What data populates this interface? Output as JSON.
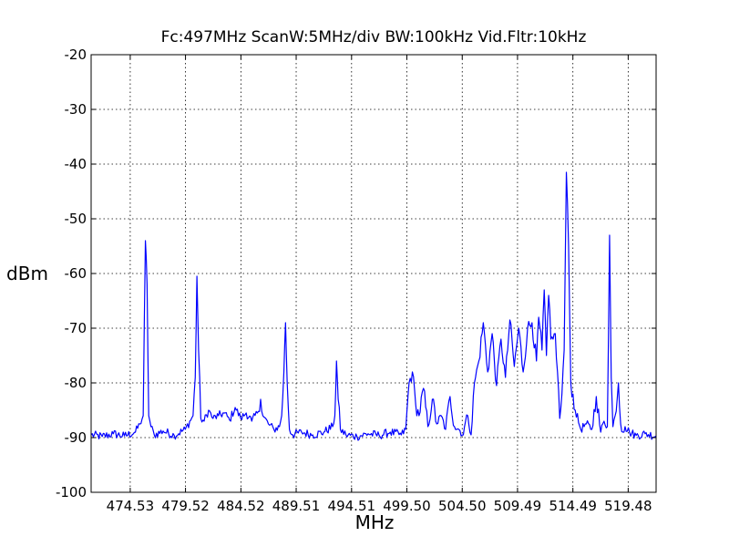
{
  "chart_data": {
    "type": "line",
    "title": "Fc:497MHz ScanW:5MHz/div BW:100kHz Vid.Fltr:10kHz",
    "xlabel": "MHz",
    "ylabel": "dBm",
    "xlim": [
      471.0,
      522.0
    ],
    "ylim": [
      -100,
      -20
    ],
    "grid": true,
    "x_ticks": [
      "474.53",
      "479.52",
      "484.52",
      "489.51",
      "494.51",
      "499.50",
      "504.50",
      "509.49",
      "514.49",
      "519.48"
    ],
    "x_tick_values": [
      474.53,
      479.52,
      484.52,
      489.51,
      494.51,
      499.5,
      504.5,
      509.49,
      514.49,
      519.48
    ],
    "y_ticks": [
      "-20",
      "-30",
      "-40",
      "-50",
      "-60",
      "-70",
      "-80",
      "-90",
      "-100"
    ],
    "y_tick_values": [
      -20,
      -30,
      -40,
      -50,
      -60,
      -70,
      -80,
      -90,
      -100
    ],
    "series": [
      {
        "color": "#0000ff",
        "x": [
          471.0,
          472.0,
          473.0,
          474.0,
          475.0,
          475.4,
          475.7,
          475.9,
          476.05,
          476.2,
          476.4,
          476.7,
          477.5,
          478.5,
          479.5,
          480.2,
          480.4,
          480.55,
          480.7,
          480.9,
          481.2,
          481.6,
          482.0,
          482.5,
          483.0,
          483.5,
          484.0,
          484.5,
          485.0,
          485.5,
          486.0,
          486.3,
          486.5,
          487.0,
          487.5,
          488.0,
          488.2,
          488.4,
          488.55,
          488.7,
          488.9,
          489.2,
          490.0,
          491.0,
          492.0,
          492.8,
          493.0,
          493.15,
          493.3,
          493.5,
          494.0,
          495.0,
          496.0,
          497.0,
          498.0,
          499.0,
          499.4,
          499.7,
          500.0,
          500.3,
          500.6,
          501.0,
          501.4,
          501.8,
          502.2,
          502.6,
          503.0,
          503.4,
          503.8,
          504.2,
          504.6,
          504.8,
          505.0,
          505.3,
          505.6,
          506.0,
          506.4,
          506.8,
          507.2,
          507.6,
          508.0,
          508.4,
          508.8,
          509.2,
          509.6,
          510.0,
          510.4,
          510.8,
          511.2,
          511.4,
          511.7,
          511.9,
          512.1,
          512.3,
          512.5,
          512.7,
          512.9,
          513.1,
          513.3,
          513.5,
          513.7,
          513.9,
          514.1,
          514.3,
          514.7,
          515.2,
          515.7,
          516.2,
          516.6,
          517.0,
          517.3,
          517.6,
          517.8,
          517.95,
          518.1,
          518.3,
          518.6,
          518.8,
          519.0,
          519.2,
          519.6,
          520.2,
          521.0,
          522.0
        ],
        "y": [
          -89.5,
          -89.8,
          -89.3,
          -89.7,
          -89.0,
          -87.5,
          -86.0,
          -54.0,
          -62.0,
          -86.0,
          -88.0,
          -89.5,
          -88.8,
          -89.6,
          -88.5,
          -86.0,
          -79.0,
          -60.5,
          -74.0,
          -86.5,
          -87.0,
          -85.0,
          -86.5,
          -86.0,
          -85.5,
          -86.8,
          -84.5,
          -86.5,
          -85.5,
          -87.0,
          -85.5,
          -83.0,
          -86.0,
          -87.5,
          -88.5,
          -88.0,
          -86.0,
          -78.0,
          -69.0,
          -80.0,
          -88.5,
          -89.5,
          -89.0,
          -89.5,
          -89.0,
          -88.0,
          -86.0,
          -76.0,
          -83.0,
          -88.5,
          -89.5,
          -89.8,
          -89.3,
          -89.6,
          -89.0,
          -89.5,
          -88.5,
          -80.0,
          -78.0,
          -84.0,
          -86.0,
          -81.0,
          -88.0,
          -83.0,
          -87.5,
          -86.0,
          -88.5,
          -82.5,
          -88.0,
          -88.5,
          -89.5,
          -87.0,
          -86.0,
          -89.5,
          -80.0,
          -76.0,
          -69.0,
          -78.0,
          -71.0,
          -80.5,
          -72.0,
          -79.0,
          -68.5,
          -77.0,
          -70.0,
          -78.0,
          -70.0,
          -69.0,
          -76.0,
          -68.0,
          -74.0,
          -63.0,
          -75.0,
          -64.0,
          -72.0,
          -72.0,
          -71.0,
          -78.0,
          -86.5,
          -82.0,
          -74.0,
          -41.5,
          -55.0,
          -80.0,
          -85.0,
          -88.5,
          -87.5,
          -88.5,
          -82.5,
          -89.0,
          -87.0,
          -88.0,
          -53.0,
          -79.0,
          -88.0,
          -86.0,
          -80.0,
          -87.5,
          -89.0,
          -88.0,
          -89.0,
          -89.6,
          -89.3,
          -89.7
        ]
      }
    ]
  }
}
